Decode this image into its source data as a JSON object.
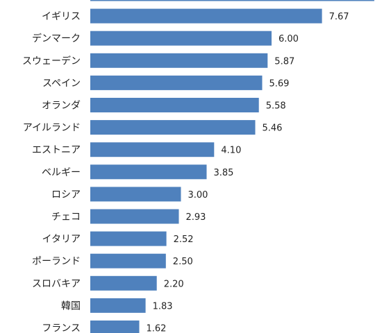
{
  "chart_data": {
    "type": "bar",
    "orientation": "horizontal",
    "categories": [
      "",
      "イギリス",
      "デンマーク",
      "スウェーデン",
      "スペイン",
      "オランダ",
      "アイルランド",
      "エストニア",
      "ベルギー",
      "ロシア",
      "チェコ",
      "イタリア",
      "ポーランド",
      "スロバキア",
      "韓国",
      "フランス"
    ],
    "values": [
      9.4,
      7.67,
      6.0,
      5.87,
      5.69,
      5.58,
      5.46,
      4.1,
      3.85,
      3.0,
      2.93,
      2.52,
      2.5,
      2.2,
      1.83,
      1.62
    ],
    "value_labels": [
      "",
      "7.67",
      "6.00",
      "5.87",
      "5.69",
      "5.58",
      "5.46",
      "4.10",
      "3.85",
      "3.00",
      "2.93",
      "2.52",
      "2.50",
      "2.20",
      "1.83",
      "1.62"
    ],
    "bar_color": "#4f81bd",
    "title": "",
    "xlabel": "",
    "ylabel": "",
    "grid": false,
    "legend": "none"
  }
}
